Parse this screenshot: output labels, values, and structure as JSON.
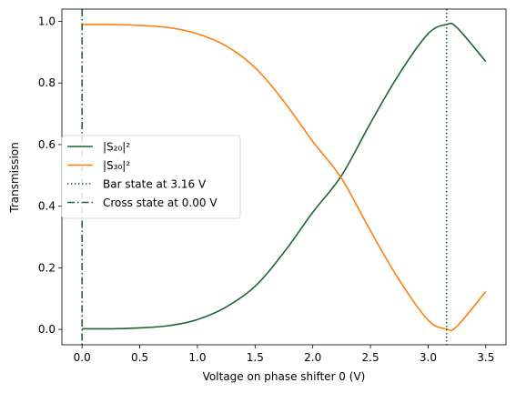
{
  "chart_data": {
    "type": "line",
    "title": "",
    "xlabel": "Voltage on phase shifter 0 (V)",
    "ylabel": "Transmission",
    "xlim": [
      -0.175,
      3.675
    ],
    "ylim": [
      -0.05,
      1.04
    ],
    "x_ticks": [
      0.0,
      0.5,
      1.0,
      1.5,
      2.0,
      2.5,
      3.0,
      3.5
    ],
    "x_tick_labels": [
      "0.0",
      "0.5",
      "1.0",
      "1.5",
      "2.0",
      "2.5",
      "3.0",
      "3.5"
    ],
    "y_ticks": [
      0.0,
      0.2,
      0.4,
      0.6,
      0.8,
      1.0
    ],
    "y_tick_labels": [
      "0.0",
      "0.2",
      "0.4",
      "0.6",
      "0.8",
      "1.0"
    ],
    "grid": false,
    "legend_position": "center-left",
    "series": [
      {
        "name": "|S₂₀|²",
        "color": "#1b6535",
        "style": "solid",
        "x": [
          0.0,
          0.25,
          0.5,
          0.75,
          1.0,
          1.25,
          1.5,
          1.75,
          2.0,
          2.25,
          2.5,
          2.75,
          3.0,
          3.16,
          3.25,
          3.5
        ],
        "y": [
          0.002,
          0.002,
          0.005,
          0.012,
          0.032,
          0.073,
          0.14,
          0.25,
          0.38,
          0.5,
          0.67,
          0.83,
          0.96,
          0.99,
          0.98,
          0.87
        ]
      },
      {
        "name": "|S₃₀|²",
        "color": "#ff7f0e",
        "style": "solid",
        "x": [
          0.0,
          0.25,
          0.5,
          0.75,
          1.0,
          1.25,
          1.5,
          1.75,
          2.0,
          2.25,
          2.5,
          2.75,
          3.0,
          3.16,
          3.25,
          3.5
        ],
        "y": [
          0.99,
          0.99,
          0.987,
          0.98,
          0.96,
          0.92,
          0.85,
          0.74,
          0.61,
          0.49,
          0.32,
          0.16,
          0.03,
          0.001,
          0.01,
          0.123
        ]
      }
    ],
    "vlines": [
      {
        "name": "Bar state at 3.16 V",
        "x": 3.16,
        "color": "#1b6535",
        "style": "dotted"
      },
      {
        "name": "Cross state at 0.00 V",
        "x": 0.0,
        "color": "#1b6535",
        "style": "dashdot"
      }
    ]
  }
}
